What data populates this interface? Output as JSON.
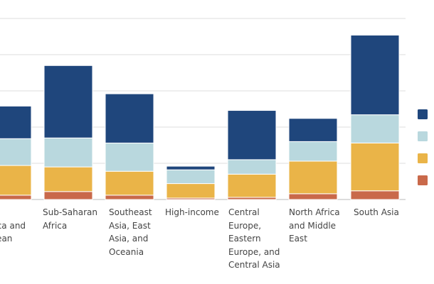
{
  "chart_data": {
    "type": "bar",
    "stacked": true,
    "categories": [
      "Latin America and Caribbean",
      "Sub-Saharan Africa",
      "Southeast Asia, East Asia, and Oceania",
      "High-income",
      "Central Europe, Eastern Europe, and Central Asia",
      "North Africa and Middle East",
      "South Asia"
    ],
    "visible_label_lines": [
      [
        "...",
        "...rica and",
        "...bean"
      ],
      [
        "Sub-Saharan",
        "Africa"
      ],
      [
        "Southeast",
        "Asia, East",
        "Asia, and",
        "Oceania"
      ],
      [
        "High-income"
      ],
      [
        "Central",
        "Europe,",
        "Eastern",
        "Europe, and",
        "Central Asia"
      ],
      [
        "North Africa",
        "and Middle",
        "East"
      ],
      [
        "South Asia"
      ]
    ],
    "series": [
      {
        "color": "#c9694a",
        "values": [
          0.6,
          1.1,
          0.6,
          0.2,
          0.3,
          0.8,
          1.2
        ]
      },
      {
        "color": "#eab448",
        "values": [
          4.1,
          3.4,
          3.3,
          2.0,
          3.2,
          4.5,
          6.6
        ]
      },
      {
        "color": "#b9d8de",
        "values": [
          3.7,
          4.0,
          3.9,
          1.9,
          2.0,
          2.7,
          3.9
        ]
      },
      {
        "color": "#1f467c",
        "values": [
          4.5,
          10.0,
          6.8,
          0.5,
          6.8,
          3.2,
          11.0
        ]
      }
    ],
    "legend": {
      "position": "right",
      "series_order_top_to_bottom": [
        3,
        2,
        1,
        0
      ]
    },
    "ylim": [
      0,
      25
    ],
    "grid": true
  }
}
